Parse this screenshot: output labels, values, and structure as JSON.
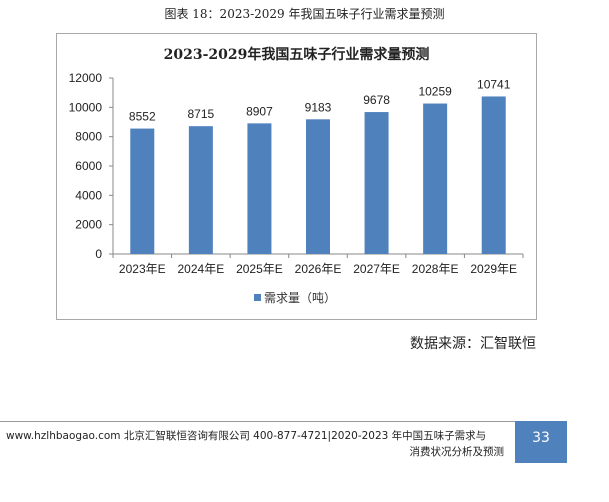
{
  "figure_caption": "图表 18：2023-2029 年我国五味子行业需求量预测",
  "chart_data": {
    "type": "bar",
    "title": "2023-2029年我国五味子行业需求量预测",
    "categories": [
      "2023年E",
      "2024年E",
      "2025年E",
      "2026年E",
      "2027年E",
      "2028年E",
      "2029年E"
    ],
    "series": [
      {
        "name": "需求量（吨）",
        "values": [
          8552,
          8715,
          8907,
          9183,
          9678,
          10259,
          10741
        ],
        "color": "#4f81bd"
      }
    ],
    "xlabel": "",
    "ylabel": "",
    "ylim": [
      0,
      12000
    ],
    "yticks": [
      0,
      2000,
      4000,
      6000,
      8000,
      10000,
      12000
    ],
    "grid": false,
    "legend_position": "bottom",
    "data_labels": true
  },
  "legend": {
    "label": "需求量（吨）"
  },
  "source": "数据来源：汇智联恒",
  "footer": {
    "line1": "www.hzlhbaogao.com 北京汇智联恒咨询有限公司 400-877-4721|2020-2023 年中国五味子需求与",
    "line2": "消费状况分析及预测",
    "page_number": "33"
  }
}
